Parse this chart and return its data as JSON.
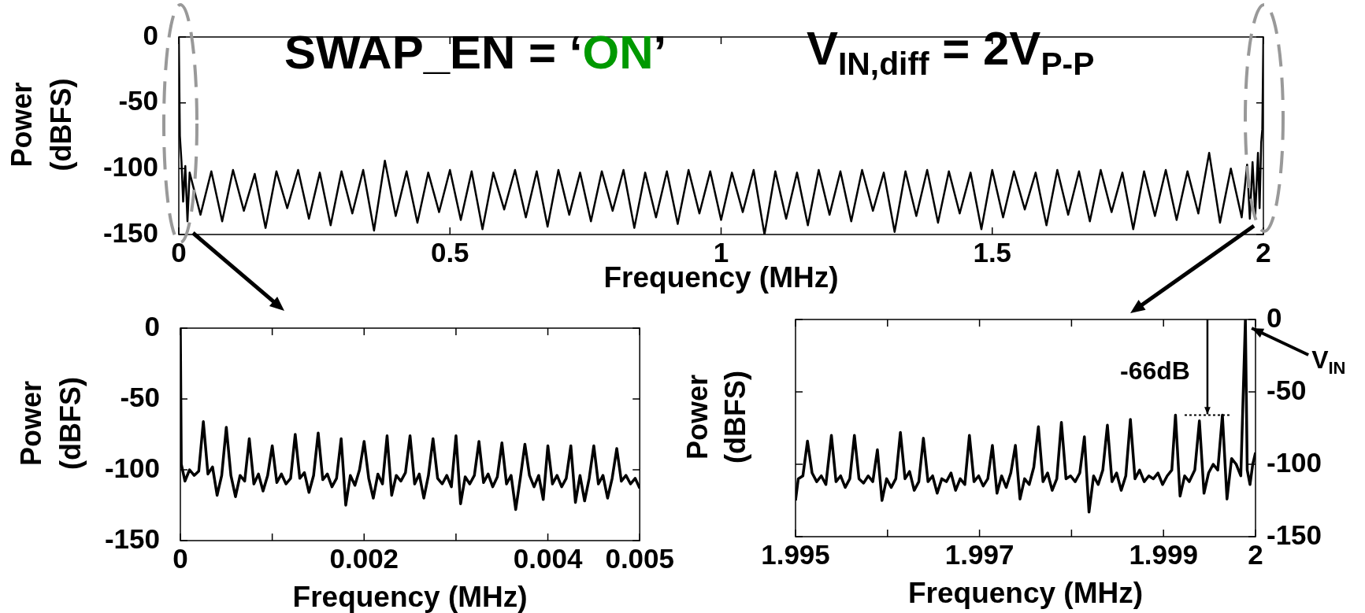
{
  "chart_data": [
    {
      "type": "line",
      "title": "SWAP_EN = ‘ON’",
      "annotations": [
        "V$_{IN,diff}$  = 2V$_{P-P}$"
      ],
      "xlabel": "Frequency (MHz)",
      "ylabel": "Power (dBFS)",
      "color": "#000000",
      "marker": "none",
      "xlim": [
        0,
        2
      ],
      "xticks": [
        0,
        0.5,
        1,
        1.5,
        2
      ],
      "ylim": [
        -150,
        0
      ],
      "yticks": [
        0,
        -50,
        -100,
        -150
      ],
      "x": [
        0,
        0.002,
        0.005,
        0.008,
        0.012,
        0.016,
        0.02,
        0.04,
        0.06,
        0.08,
        0.1,
        0.12,
        0.14,
        0.16,
        0.18,
        0.2,
        0.22,
        0.24,
        0.26,
        0.28,
        0.3,
        0.32,
        0.34,
        0.36,
        0.38,
        0.4,
        0.42,
        0.44,
        0.46,
        0.48,
        0.5,
        0.52,
        0.54,
        0.56,
        0.58,
        0.6,
        0.62,
        0.64,
        0.66,
        0.68,
        0.7,
        0.72,
        0.74,
        0.76,
        0.78,
        0.8,
        0.82,
        0.84,
        0.86,
        0.88,
        0.9,
        0.92,
        0.94,
        0.96,
        0.98,
        1,
        1.02,
        1.04,
        1.06,
        1.08,
        1.1,
        1.12,
        1.14,
        1.16,
        1.18,
        1.2,
        1.22,
        1.24,
        1.26,
        1.28,
        1.3,
        1.32,
        1.34,
        1.36,
        1.38,
        1.4,
        1.42,
        1.44,
        1.46,
        1.48,
        1.5,
        1.52,
        1.54,
        1.56,
        1.58,
        1.6,
        1.62,
        1.64,
        1.66,
        1.68,
        1.7,
        1.72,
        1.74,
        1.76,
        1.78,
        1.8,
        1.82,
        1.84,
        1.86,
        1.88,
        1.9,
        1.92,
        1.94,
        1.96,
        1.97,
        1.975,
        1.98,
        1.985,
        1.99,
        1.993,
        1.996,
        1.998,
        2
      ],
      "values": [
        0,
        -75,
        -95,
        -125,
        -98,
        -140,
        -103,
        -135,
        -102,
        -140,
        -101,
        -132,
        -104,
        -145,
        -102,
        -130,
        -101,
        -138,
        -103,
        -143,
        -102,
        -134,
        -101,
        -147,
        -94,
        -136,
        -102,
        -141,
        -103,
        -133,
        -101,
        -139,
        -102,
        -146,
        -103,
        -131,
        -101,
        -137,
        -102,
        -144,
        -101,
        -135,
        -103,
        -140,
        -102,
        -132,
        -101,
        -145,
        -103,
        -137,
        -102,
        -142,
        -101,
        -134,
        -102,
        -139,
        -103,
        -133,
        -101,
        -150,
        -102,
        -138,
        -103,
        -143,
        -101,
        -135,
        -102,
        -140,
        -101,
        -132,
        -103,
        -148,
        -102,
        -136,
        -101,
        -141,
        -102,
        -134,
        -103,
        -146,
        -101,
        -137,
        -102,
        -131,
        -103,
        -143,
        -101,
        -135,
        -102,
        -140,
        -101,
        -133,
        -103,
        -146,
        -102,
        -136,
        -101,
        -139,
        -102,
        -134,
        -88,
        -141,
        -100,
        -137,
        -97,
        -138,
        -95,
        -135,
        -88,
        -130,
        -80,
        -70,
        0
      ]
    },
    {
      "type": "line",
      "xlabel": "Frequency (MHz)",
      "ylabel": "Power (dBFS)",
      "color": "#000000",
      "marker": "none",
      "xlim": [
        0,
        0.005
      ],
      "xticks": [
        0,
        {
          "value": 0.001,
          "label": null
        },
        0.002,
        {
          "value": 0.003,
          "label": null
        },
        0.004,
        0.005
      ],
      "ylim": [
        -150,
        0
      ],
      "yticks": [
        0,
        -50,
        -100,
        -150
      ],
      "x": [
        0,
        1e-05,
        5e-05,
        0.0001,
        0.00015,
        0.0002,
        0.00025,
        0.0003,
        0.00035,
        0.0004,
        0.00045,
        0.0005,
        0.00055,
        0.0006,
        0.00065,
        0.0007,
        0.00075,
        0.0008,
        0.00085,
        0.0009,
        0.00095,
        0.001,
        0.00105,
        0.0011,
        0.00115,
        0.0012,
        0.00125,
        0.0013,
        0.00135,
        0.0014,
        0.00145,
        0.0015,
        0.00155,
        0.0016,
        0.00165,
        0.0017,
        0.00175,
        0.0018,
        0.00185,
        0.0019,
        0.00195,
        0.002,
        0.00205,
        0.0021,
        0.00215,
        0.0022,
        0.00225,
        0.0023,
        0.00235,
        0.0024,
        0.00245,
        0.0025,
        0.00255,
        0.0026,
        0.00265,
        0.0027,
        0.00275,
        0.0028,
        0.00285,
        0.0029,
        0.00295,
        0.003,
        0.00305,
        0.0031,
        0.00315,
        0.0032,
        0.00325,
        0.0033,
        0.00335,
        0.0034,
        0.00345,
        0.0035,
        0.00355,
        0.0036,
        0.00365,
        0.0037,
        0.00375,
        0.0038,
        0.00385,
        0.0039,
        0.00395,
        0.004,
        0.00405,
        0.0041,
        0.00415,
        0.0042,
        0.00425,
        0.0043,
        0.00435,
        0.0044,
        0.00445,
        0.0045,
        0.00455,
        0.0046,
        0.00465,
        0.0047,
        0.00475,
        0.0048,
        0.00485,
        0.0049,
        0.00495,
        0.005
      ],
      "values": [
        0,
        -96,
        -108,
        -100,
        -104,
        -101,
        -66,
        -103,
        -98,
        -118,
        -104,
        -70,
        -104,
        -119,
        -104,
        -108,
        -78,
        -110,
        -103,
        -115,
        -104,
        -83,
        -109,
        -103,
        -110,
        -106,
        -75,
        -106,
        -102,
        -116,
        -104,
        -74,
        -107,
        -103,
        -112,
        -106,
        -78,
        -125,
        -104,
        -111,
        -100,
        -80,
        -106,
        -120,
        -103,
        -110,
        -76,
        -118,
        -104,
        -108,
        -102,
        -76,
        -110,
        -103,
        -120,
        -104,
        -78,
        -106,
        -110,
        -104,
        -112,
        -76,
        -124,
        -105,
        -110,
        -104,
        -80,
        -109,
        -103,
        -112,
        -105,
        -81,
        -110,
        -104,
        -128,
        -106,
        -82,
        -104,
        -112,
        -104,
        -121,
        -83,
        -110,
        -104,
        -112,
        -106,
        -83,
        -123,
        -104,
        -122,
        -106,
        -83,
        -110,
        -104,
        -120,
        -106,
        -85,
        -108,
        -104,
        -110,
        -106,
        -113
      ]
    },
    {
      "type": "line",
      "xlabel": "Frequency (MHz)",
      "ylabel": "Power (dBFS)",
      "marker": "none",
      "annotations": [
        {
          "text": "-66dB",
          "x": 1.99964,
          "y": -66
        },
        {
          "text": "V$_{IN}$",
          "x": 1.99989,
          "y": 0
        }
      ],
      "xlim": [
        1.995,
        2
      ],
      "xticks": [
        1.995,
        {
          "value": 1.996,
          "label": null
        },
        1.997,
        {
          "value": 1.998,
          "label": null
        },
        1.999,
        2
      ],
      "ylim": [
        -150,
        0
      ],
      "yticks": [
        0,
        -50,
        -100,
        -150
      ],
      "x": [
        1.995,
        1.99503,
        1.99508,
        1.99513,
        1.99518,
        1.99523,
        1.99528,
        1.99533,
        1.99539,
        1.99544,
        1.99549,
        1.99554,
        1.99559,
        1.99564,
        1.99569,
        1.99574,
        1.99579,
        1.99584,
        1.99589,
        1.99594,
        1.99599,
        1.99604,
        1.99609,
        1.99614,
        1.99619,
        1.99624,
        1.99629,
        1.99634,
        1.99639,
        1.99644,
        1.99649,
        1.99654,
        1.99659,
        1.99664,
        1.99669,
        1.99674,
        1.99679,
        1.99684,
        1.99689,
        1.99694,
        1.99699,
        1.99704,
        1.99709,
        1.99714,
        1.99719,
        1.99724,
        1.99729,
        1.99734,
        1.99739,
        1.99744,
        1.99749,
        1.99754,
        1.99759,
        1.99764,
        1.99769,
        1.99774,
        1.99779,
        1.99784,
        1.99789,
        1.99794,
        1.99799,
        1.99804,
        1.99809,
        1.99814,
        1.99819,
        1.99824,
        1.99829,
        1.99834,
        1.99839,
        1.99844,
        1.99849,
        1.99854,
        1.99859,
        1.99864,
        1.99869,
        1.99874,
        1.99879,
        1.99884,
        1.99889,
        1.99894,
        1.99899,
        1.99904,
        1.99909,
        1.99913,
        1.99918,
        1.99923,
        1.99928,
        1.99934,
        1.99939,
        1.99944,
        1.99949,
        1.99954,
        1.99959,
        1.99964,
        1.99969,
        1.99974,
        1.99979,
        1.99984,
        1.99989,
        1.99991,
        1.99994,
        1.99997,
        2
      ],
      "series": [
        {
          "color": "#000000",
          "values": [
            -125,
            -110,
            -108,
            -84,
            -106,
            -112,
            -108,
            -114,
            -80,
            -112,
            -108,
            -116,
            -110,
            -80,
            -110,
            -113,
            -108,
            -112,
            -90,
            -125,
            -110,
            -116,
            -110,
            -78,
            -110,
            -105,
            -118,
            -112,
            -82,
            -112,
            -108,
            -120,
            -110,
            -112,
            -106,
            -118,
            -110,
            -114,
            -80,
            -112,
            -108,
            -115,
            -110,
            -87,
            -120,
            -108,
            -116,
            -106,
            -87,
            -124,
            -110,
            -114,
            -102,
            -74,
            -112,
            -106,
            -118,
            -110,
            -71,
            -110,
            -108,
            -112,
            -106,
            -81,
            -133,
            -108,
            -114,
            -104,
            -73,
            -112,
            -106,
            -118,
            -108,
            -69,
            -110,
            -104,
            -112,
            -108,
            -110,
            -106,
            -114,
            -108,
            -104,
            -66,
            -122,
            -108,
            -112,
            -104,
            -70,
            -120,
            -106,
            -100,
            -104,
            -66,
            -124,
            -96,
            -100,
            -108,
            0,
            -104,
            -114,
            -100,
            -92
          ]
        }
      ]
    }
  ]
}
